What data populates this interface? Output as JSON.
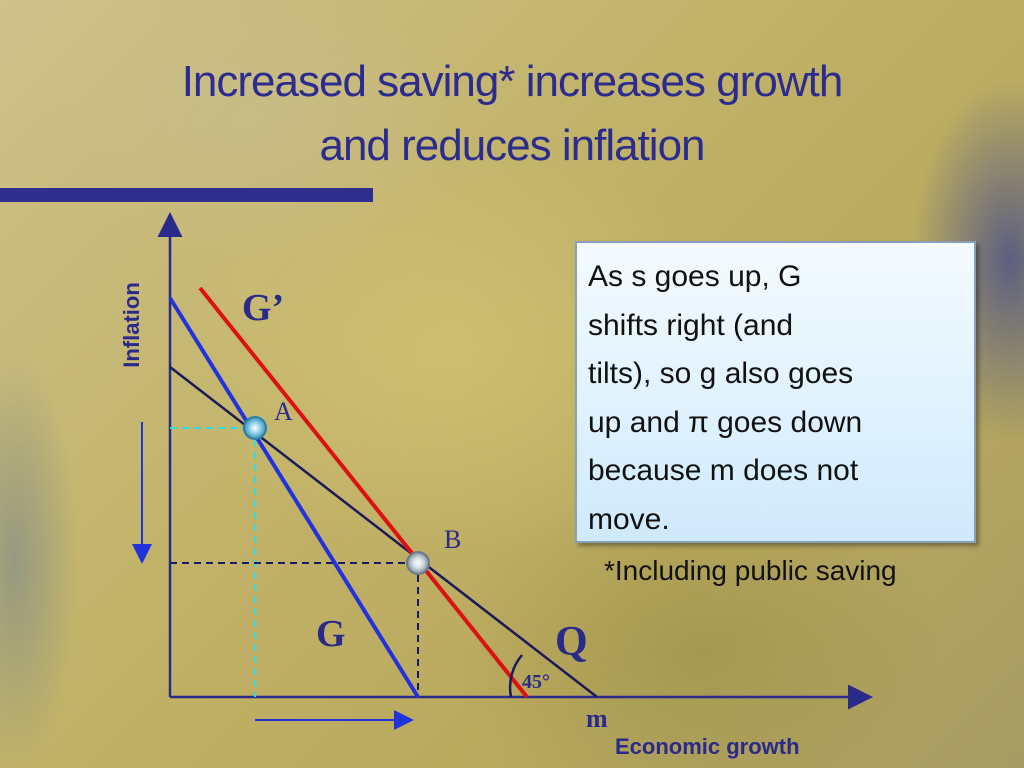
{
  "header": {
    "title_lines": [
      "Increased saving* increases growth",
      "and reduces inflation"
    ]
  },
  "diagram": {
    "y_axis_label": "Inflation",
    "x_axis_label": "Economic growth",
    "g_prime_label": "G’",
    "g_label": "G",
    "q_label": "Q",
    "point_a_label": "A",
    "point_b_label": "B",
    "angle_label": "45°",
    "m_label": "m"
  },
  "note": {
    "lines": [
      "As s goes up, G",
      "shifts right (and",
      "tilts), so g also goes",
      "up and π goes down",
      "because m does not",
      "move."
    ],
    "footnote": "*Including public saving"
  }
}
